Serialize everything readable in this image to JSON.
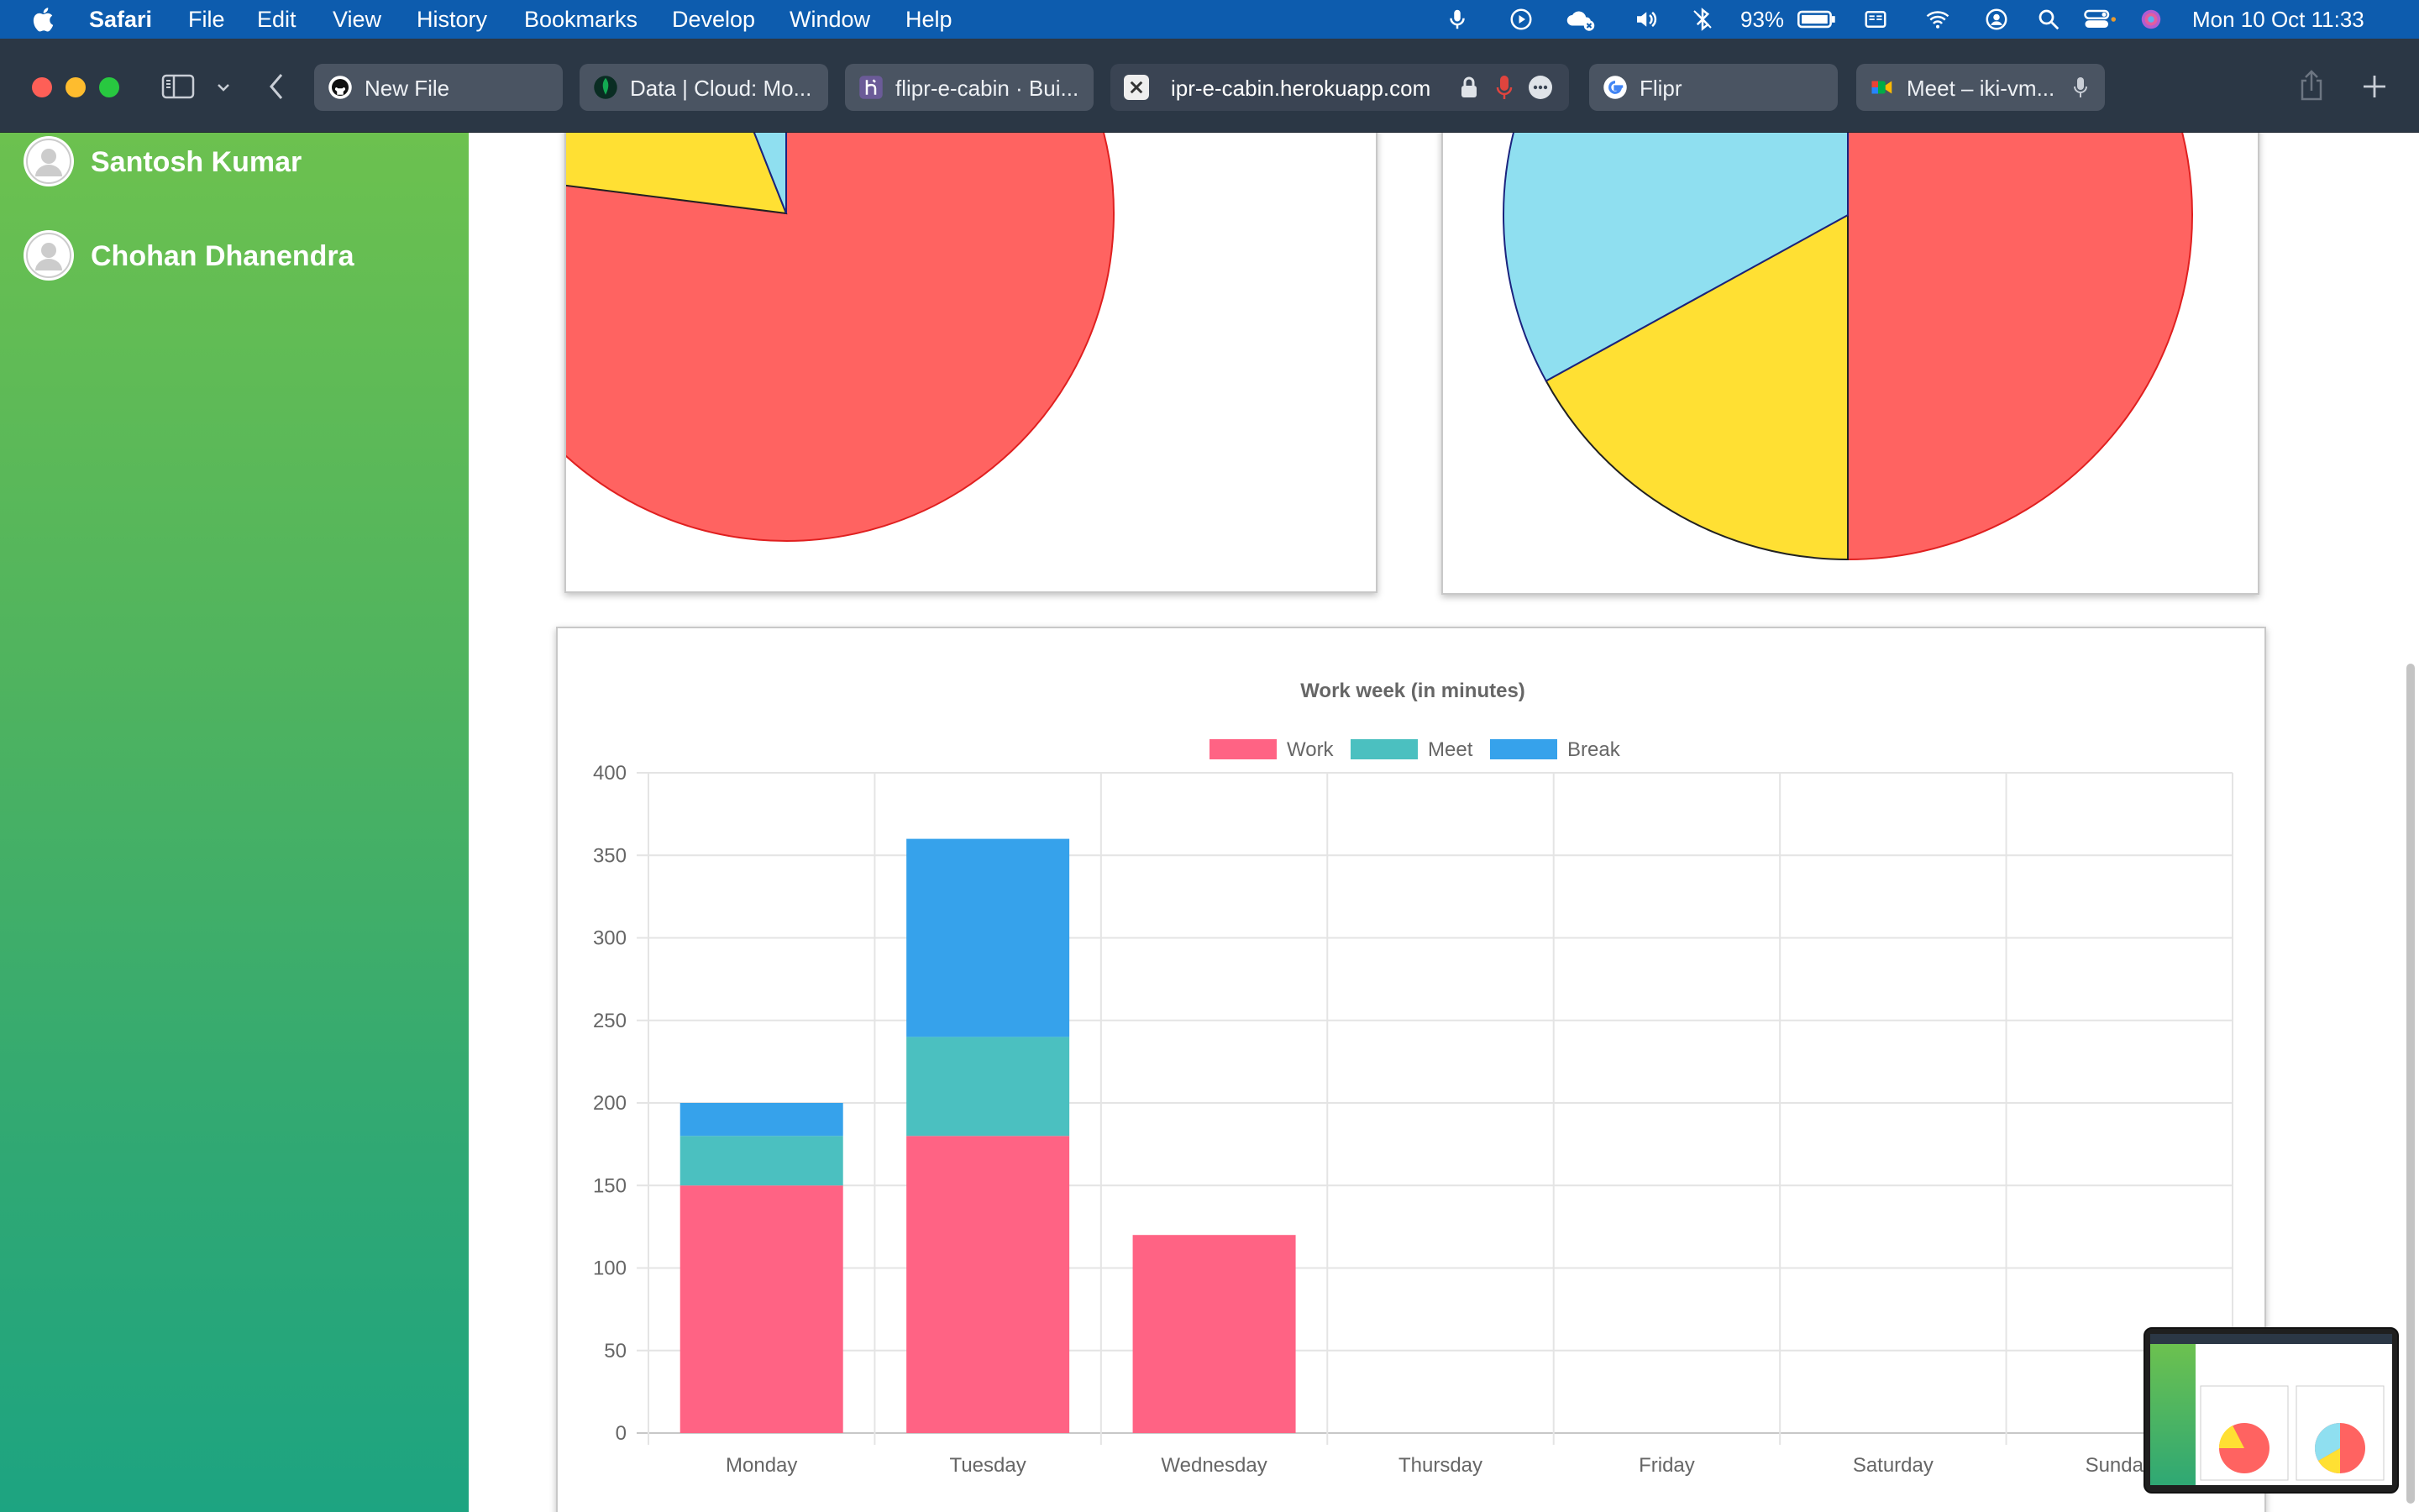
{
  "menubar": {
    "app": "Safari",
    "items": [
      "File",
      "Edit",
      "View",
      "History",
      "Bookmarks",
      "Develop",
      "Window",
      "Help"
    ],
    "battery": "93%",
    "datetime": "Mon 10 Oct  11:33"
  },
  "tabs": [
    {
      "label": "New File",
      "icon": "github-icon"
    },
    {
      "label": "Data | Cloud: Mo...",
      "icon": "mongodb-icon"
    },
    {
      "label": "flipr-e-cabin · Bui...",
      "icon": "heroku-icon"
    },
    {
      "label": "ipr-e-cabin.herokuapp.com",
      "icon": "close-icon"
    },
    {
      "label": "Flipr",
      "icon": "google-icon"
    },
    {
      "label": "Meet – iki-vm...",
      "icon": "meet-icon"
    }
  ],
  "sidebar": {
    "users": [
      {
        "name": "Santosh Kumar"
      },
      {
        "name": "Chohan Dhanendra"
      }
    ]
  },
  "colors": {
    "work": "#ff6384",
    "meet": "#4bc0c0",
    "break": "#36a2eb",
    "pie_red": "#ff6361",
    "pie_yellow": "#ffe033",
    "pie_blue": "#8fdff0"
  },
  "pies": [
    {
      "slices": [
        {
          "color": "red",
          "value": 77
        },
        {
          "color": "yellow",
          "value": 17
        },
        {
          "color": "blue",
          "value": 6
        }
      ]
    },
    {
      "slices": [
        {
          "color": "red",
          "value": 50
        },
        {
          "color": "yellow",
          "value": 17
        },
        {
          "color": "blue",
          "value": 33
        }
      ]
    }
  ],
  "chart_data": {
    "type": "bar",
    "stacked": true,
    "title": "Work week (in minutes)",
    "categories": [
      "Monday",
      "Tuesday",
      "Wednesday",
      "Thursday",
      "Friday",
      "Saturday",
      "Sunday"
    ],
    "series": [
      {
        "name": "Work",
        "values": [
          150,
          180,
          120,
          0,
          0,
          0,
          0
        ]
      },
      {
        "name": "Meet",
        "values": [
          30,
          60,
          0,
          0,
          0,
          0,
          0
        ]
      },
      {
        "name": "Break",
        "values": [
          20,
          120,
          0,
          0,
          0,
          0,
          0
        ]
      }
    ],
    "ylim": [
      0,
      400
    ],
    "yticks": [
      0,
      50,
      100,
      150,
      200,
      250,
      300,
      350,
      400
    ],
    "grid": true,
    "legend": "top"
  }
}
